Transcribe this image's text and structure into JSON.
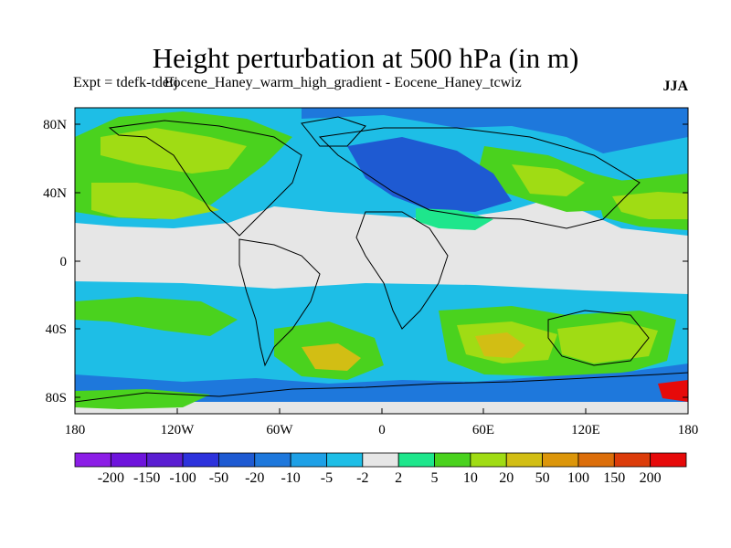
{
  "title": "Height perturbation at 500 hPa (in m)",
  "subtitle": "Expt = tdefk-tdefj",
  "subtitle_overlap": "Eocene_Haney_warm_high_gradient - Eocene_Haney_tcwiz",
  "season": "JJA",
  "axes": {
    "lat_ticks": [
      "80N",
      "40N",
      "0",
      "40S",
      "80S"
    ],
    "lon_ticks": [
      "180",
      "120W",
      "60W",
      "0",
      "60E",
      "120E",
      "180"
    ]
  },
  "colorbar": {
    "labels": [
      "-200",
      "-150",
      "-100",
      "-50",
      "-20",
      "-10",
      "-5",
      "-2",
      "2",
      "5",
      "10",
      "20",
      "50",
      "100",
      "150",
      "200"
    ],
    "colors": [
      "#8c1ee6",
      "#6e14dc",
      "#5a1ed2",
      "#2d32dc",
      "#1e5ad2",
      "#1e78dc",
      "#1ea0e6",
      "#1ebee6",
      "#e6e6e6",
      "#1ee68c",
      "#4ad21e",
      "#a0dc14",
      "#d2be14",
      "#dc960a",
      "#dc6e0a",
      "#dc3c0a",
      "#e60a0a"
    ]
  },
  "map_colors": {
    "background": "#e6e6e6",
    "strong_neg": "#1e5ad2",
    "mid_neg": "#1e78dc",
    "weak_neg": "#1ea0e6",
    "light_neg": "#1ebee6",
    "weak_pos": "#1ee68c",
    "mid_pos": "#4ad21e",
    "strong_pos": "#a0dc14",
    "max_pos": "#d2be14",
    "coast": "#000000"
  }
}
